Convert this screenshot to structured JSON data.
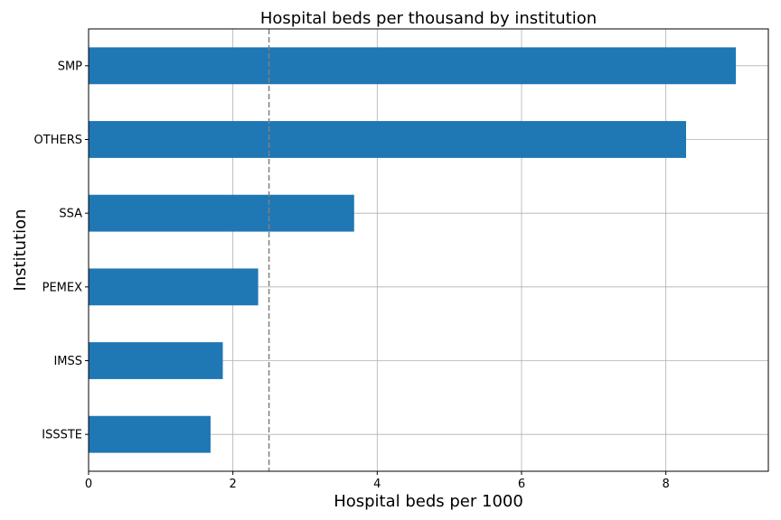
{
  "chart_data": {
    "type": "bar",
    "orientation": "horizontal",
    "title": "Hospital beds per thousand by institution",
    "xlabel": "Hospital beds per 1000",
    "ylabel": "Institution",
    "categories": [
      "ISSSTE",
      "IMSS",
      "PEMEX",
      "SSA",
      "OTHERS",
      "SMP"
    ],
    "values": [
      1.69,
      1.86,
      2.35,
      3.68,
      8.28,
      8.97
    ],
    "xlim": [
      0,
      9.42
    ],
    "xticks": [
      0,
      2,
      4,
      6,
      8
    ],
    "reference_line": {
      "x": 2.5,
      "style": "dashed",
      "color": "#808080"
    },
    "grid": true,
    "bar_color": "#1f77b4"
  }
}
